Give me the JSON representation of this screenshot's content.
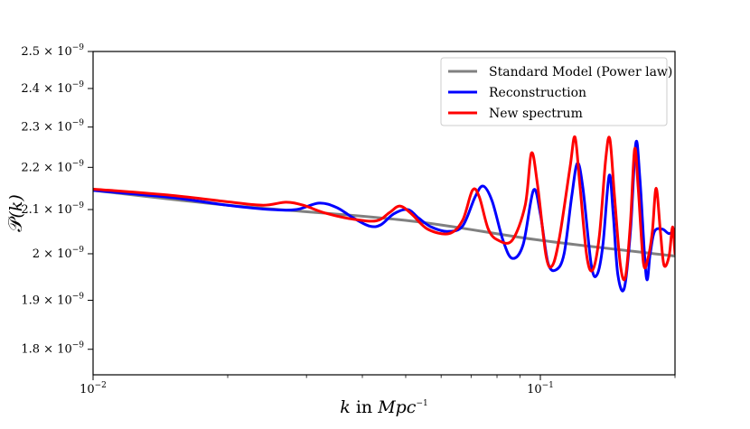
{
  "chart_data": {
    "type": "line",
    "title": "",
    "xlabel": "k in Mpc^-1",
    "xlabel_parts": {
      "k": "k",
      "in": "in",
      "unit": "Mpc",
      "exp": "−1"
    },
    "ylabel": "P(k)",
    "ylabel_parts": {
      "script": "𝒫",
      "arg": "(k)"
    },
    "xscale": "log",
    "yscale": "log",
    "xlim": [
      0.01,
      0.2
    ],
    "ylim": [
      1.75e-09,
      2.5e-09
    ],
    "grid": false,
    "legend_position": "top-right",
    "x_ticks": [
      {
        "value": 0.01,
        "base": "10",
        "exp": "−2"
      },
      {
        "value": 0.1,
        "base": "10",
        "exp": "−1"
      }
    ],
    "y_ticks": [
      {
        "value": 1.8e-09,
        "mant": "1.8",
        "times": "×",
        "base": "10",
        "exp": "−9"
      },
      {
        "value": 1.9e-09,
        "mant": "1.9",
        "times": "×",
        "base": "10",
        "exp": "−9"
      },
      {
        "value": 2e-09,
        "mant": "2",
        "times": "×",
        "base": "10",
        "exp": "−9"
      },
      {
        "value": 2.1e-09,
        "mant": "2.1",
        "times": "×",
        "base": "10",
        "exp": "−9"
      },
      {
        "value": 2.2e-09,
        "mant": "2.2",
        "times": "×",
        "base": "10",
        "exp": "−9"
      },
      {
        "value": 2.3e-09,
        "mant": "2.3",
        "times": "×",
        "base": "10",
        "exp": "−9"
      },
      {
        "value": 2.4e-09,
        "mant": "2.4",
        "times": "×",
        "base": "10",
        "exp": "−9"
      },
      {
        "value": 2.5e-09,
        "mant": "2.5",
        "times": "×",
        "base": "10",
        "exp": "−9"
      }
    ],
    "series": [
      {
        "name": "Standard Model (Power law)",
        "color": "#808080",
        "points": [
          [
            0.01,
            2.145e-09
          ],
          [
            0.02,
            2.11e-09
          ],
          [
            0.05,
            2.075e-09
          ],
          [
            0.1,
            2.03e-09
          ],
          [
            0.2,
            1.995e-09
          ]
        ]
      },
      {
        "name": "Reconstruction",
        "color": "#0000ff",
        "points": [
          [
            0.01,
            2.145e-09
          ],
          [
            0.015,
            2.128e-09
          ],
          [
            0.02,
            2.11e-09
          ],
          [
            0.025,
            2.1e-09
          ],
          [
            0.0285,
            2.1e-09
          ],
          [
            0.032,
            2.115e-09
          ],
          [
            0.035,
            2.105e-09
          ],
          [
            0.038,
            2.082e-09
          ],
          [
            0.0415,
            2.062e-09
          ],
          [
            0.044,
            2.065e-09
          ],
          [
            0.047,
            2.09e-09
          ],
          [
            0.0505,
            2.1e-09
          ],
          [
            0.0535,
            2.08e-09
          ],
          [
            0.057,
            2.06e-09
          ],
          [
            0.062,
            2.05e-09
          ],
          [
            0.067,
            2.062e-09
          ],
          [
            0.0715,
            2.13e-09
          ],
          [
            0.0745,
            2.155e-09
          ],
          [
            0.078,
            2.12e-09
          ],
          [
            0.0825,
            2.03e-09
          ],
          [
            0.0865,
            1.99e-09
          ],
          [
            0.0915,
            2.02e-09
          ],
          [
            0.0965,
            2.145e-09
          ],
          [
            0.1,
            2.09e-09
          ],
          [
            0.104,
            1.98e-09
          ],
          [
            0.1085,
            1.965e-09
          ],
          [
            0.113,
            2e-09
          ],
          [
            0.1175,
            2.13e-09
          ],
          [
            0.121,
            2.21e-09
          ],
          [
            0.1245,
            2.15e-09
          ],
          [
            0.13,
            1.975e-09
          ],
          [
            0.134,
            1.955e-09
          ],
          [
            0.138,
            2.02e-09
          ],
          [
            0.1425,
            2.18e-09
          ],
          [
            0.1455,
            2.09e-09
          ],
          [
            0.149,
            1.955e-09
          ],
          [
            0.154,
            1.925e-09
          ],
          [
            0.159,
            2.05e-09
          ],
          [
            0.1635,
            2.26e-09
          ],
          [
            0.167,
            2.17e-09
          ],
          [
            0.1725,
            1.95e-09
          ],
          [
            0.176,
            2e-09
          ],
          [
            0.18,
            2.05e-09
          ],
          [
            0.1875,
            2.055e-09
          ],
          [
            0.194,
            2.045e-09
          ],
          [
            0.2,
            2.055e-09
          ]
        ]
      },
      {
        "name": "New spectrum",
        "color": "#ff0000",
        "points": [
          [
            0.01,
            2.148e-09
          ],
          [
            0.015,
            2.133e-09
          ],
          [
            0.02,
            2.118e-09
          ],
          [
            0.024,
            2.11e-09
          ],
          [
            0.027,
            2.117e-09
          ],
          [
            0.0295,
            2.11e-09
          ],
          [
            0.033,
            2.092e-09
          ],
          [
            0.038,
            2.078e-09
          ],
          [
            0.043,
            2.074e-09
          ],
          [
            0.046,
            2.093e-09
          ],
          [
            0.0485,
            2.108e-09
          ],
          [
            0.0515,
            2.09e-09
          ],
          [
            0.056,
            2.055e-09
          ],
          [
            0.0625,
            2.045e-09
          ],
          [
            0.067,
            2.075e-09
          ],
          [
            0.0705,
            2.145e-09
          ],
          [
            0.073,
            2.13e-09
          ],
          [
            0.0765,
            2.055e-09
          ],
          [
            0.0805,
            2.03e-09
          ],
          [
            0.0865,
            2.03e-09
          ],
          [
            0.0925,
            2.11e-09
          ],
          [
            0.0955,
            2.235e-09
          ],
          [
            0.0985,
            2.16e-09
          ],
          [
            0.103,
            1.995e-09
          ],
          [
            0.1065,
            1.975e-09
          ],
          [
            0.1105,
            2.04e-09
          ],
          [
            0.1165,
            2.2e-09
          ],
          [
            0.1195,
            2.275e-09
          ],
          [
            0.1225,
            2.16e-09
          ],
          [
            0.127,
            1.995e-09
          ],
          [
            0.131,
            1.965e-09
          ],
          [
            0.1355,
            2.04e-09
          ],
          [
            0.14,
            2.22e-09
          ],
          [
            0.143,
            2.27e-09
          ],
          [
            0.1465,
            2.13e-09
          ],
          [
            0.151,
            1.975e-09
          ],
          [
            0.155,
            1.95e-09
          ],
          [
            0.159,
            2.07e-09
          ],
          [
            0.1625,
            2.245e-09
          ],
          [
            0.1655,
            2.15e-09
          ],
          [
            0.17,
            1.98e-09
          ],
          [
            0.174,
            1.99e-09
          ],
          [
            0.178,
            2.05e-09
          ],
          [
            0.1815,
            2.15e-09
          ],
          [
            0.1855,
            2.05e-09
          ],
          [
            0.189,
            1.975e-09
          ],
          [
            0.194,
            1.995e-09
          ],
          [
            0.1975,
            2.06e-09
          ],
          [
            0.2,
            2e-09
          ]
        ]
      }
    ]
  }
}
